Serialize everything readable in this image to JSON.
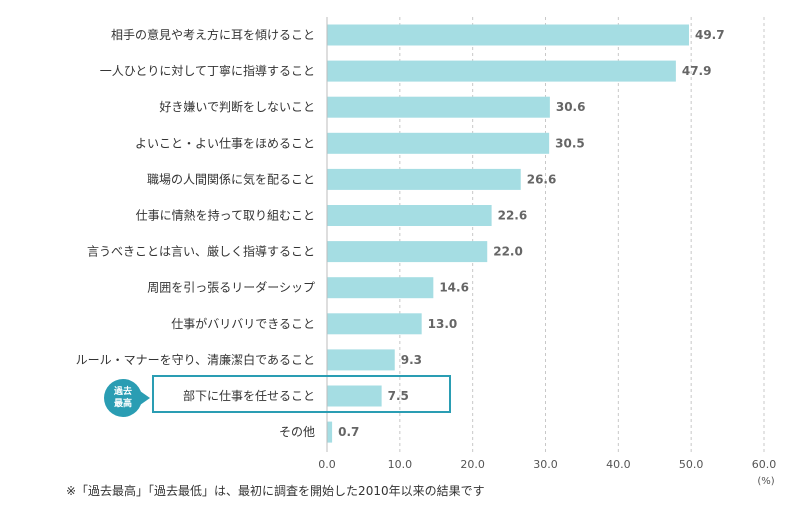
{
  "chart_data": {
    "type": "bar",
    "orientation": "horizontal",
    "categories": [
      "相手の意見や考え方に耳を傾けること",
      "一人ひとりに対して丁寧に指導すること",
      "好き嫌いで判断をしないこと",
      "よいこと・よい仕事をほめること",
      "職場の人間関係に気を配ること",
      "仕事に情熱を持って取り組むこと",
      "言うべきことは言い、厳しく指導すること",
      "周囲を引っ張るリーダーシップ",
      "仕事がバリバリできること",
      "ルール・マナーを守り、清廉潔白であること",
      "部下に仕事を任せること",
      "その他"
    ],
    "values": [
      49.7,
      47.9,
      30.6,
      30.5,
      26.6,
      22.6,
      22.0,
      14.6,
      13.0,
      9.3,
      7.5,
      0.7
    ],
    "value_labels": [
      "49.7",
      "47.9",
      "30.6",
      "30.5",
      "26.6",
      "22.6",
      "22.0",
      "14.6",
      "13.0",
      "9.3",
      "7.5",
      "0.7"
    ],
    "xlim": [
      0,
      60
    ],
    "x_ticks": [
      0,
      10,
      20,
      30,
      40,
      50,
      60
    ],
    "x_tick_labels": [
      "0.0",
      "10.0",
      "20.0",
      "30.0",
      "40.0",
      "50.0",
      "60.0"
    ],
    "unit": "(%)",
    "grid": true,
    "bar_color": "#a5dde3",
    "grid_color": "#c8c8c8",
    "highlighted_category": "部下に仕事を任せること"
  },
  "annotation": {
    "badge_line1": "過去",
    "badge_line2": "最高",
    "badge_color": "#2a9db3"
  },
  "footnote": "※「過去最高」「過去最低」は、最初に調査を開始した2010年以来の結果です"
}
